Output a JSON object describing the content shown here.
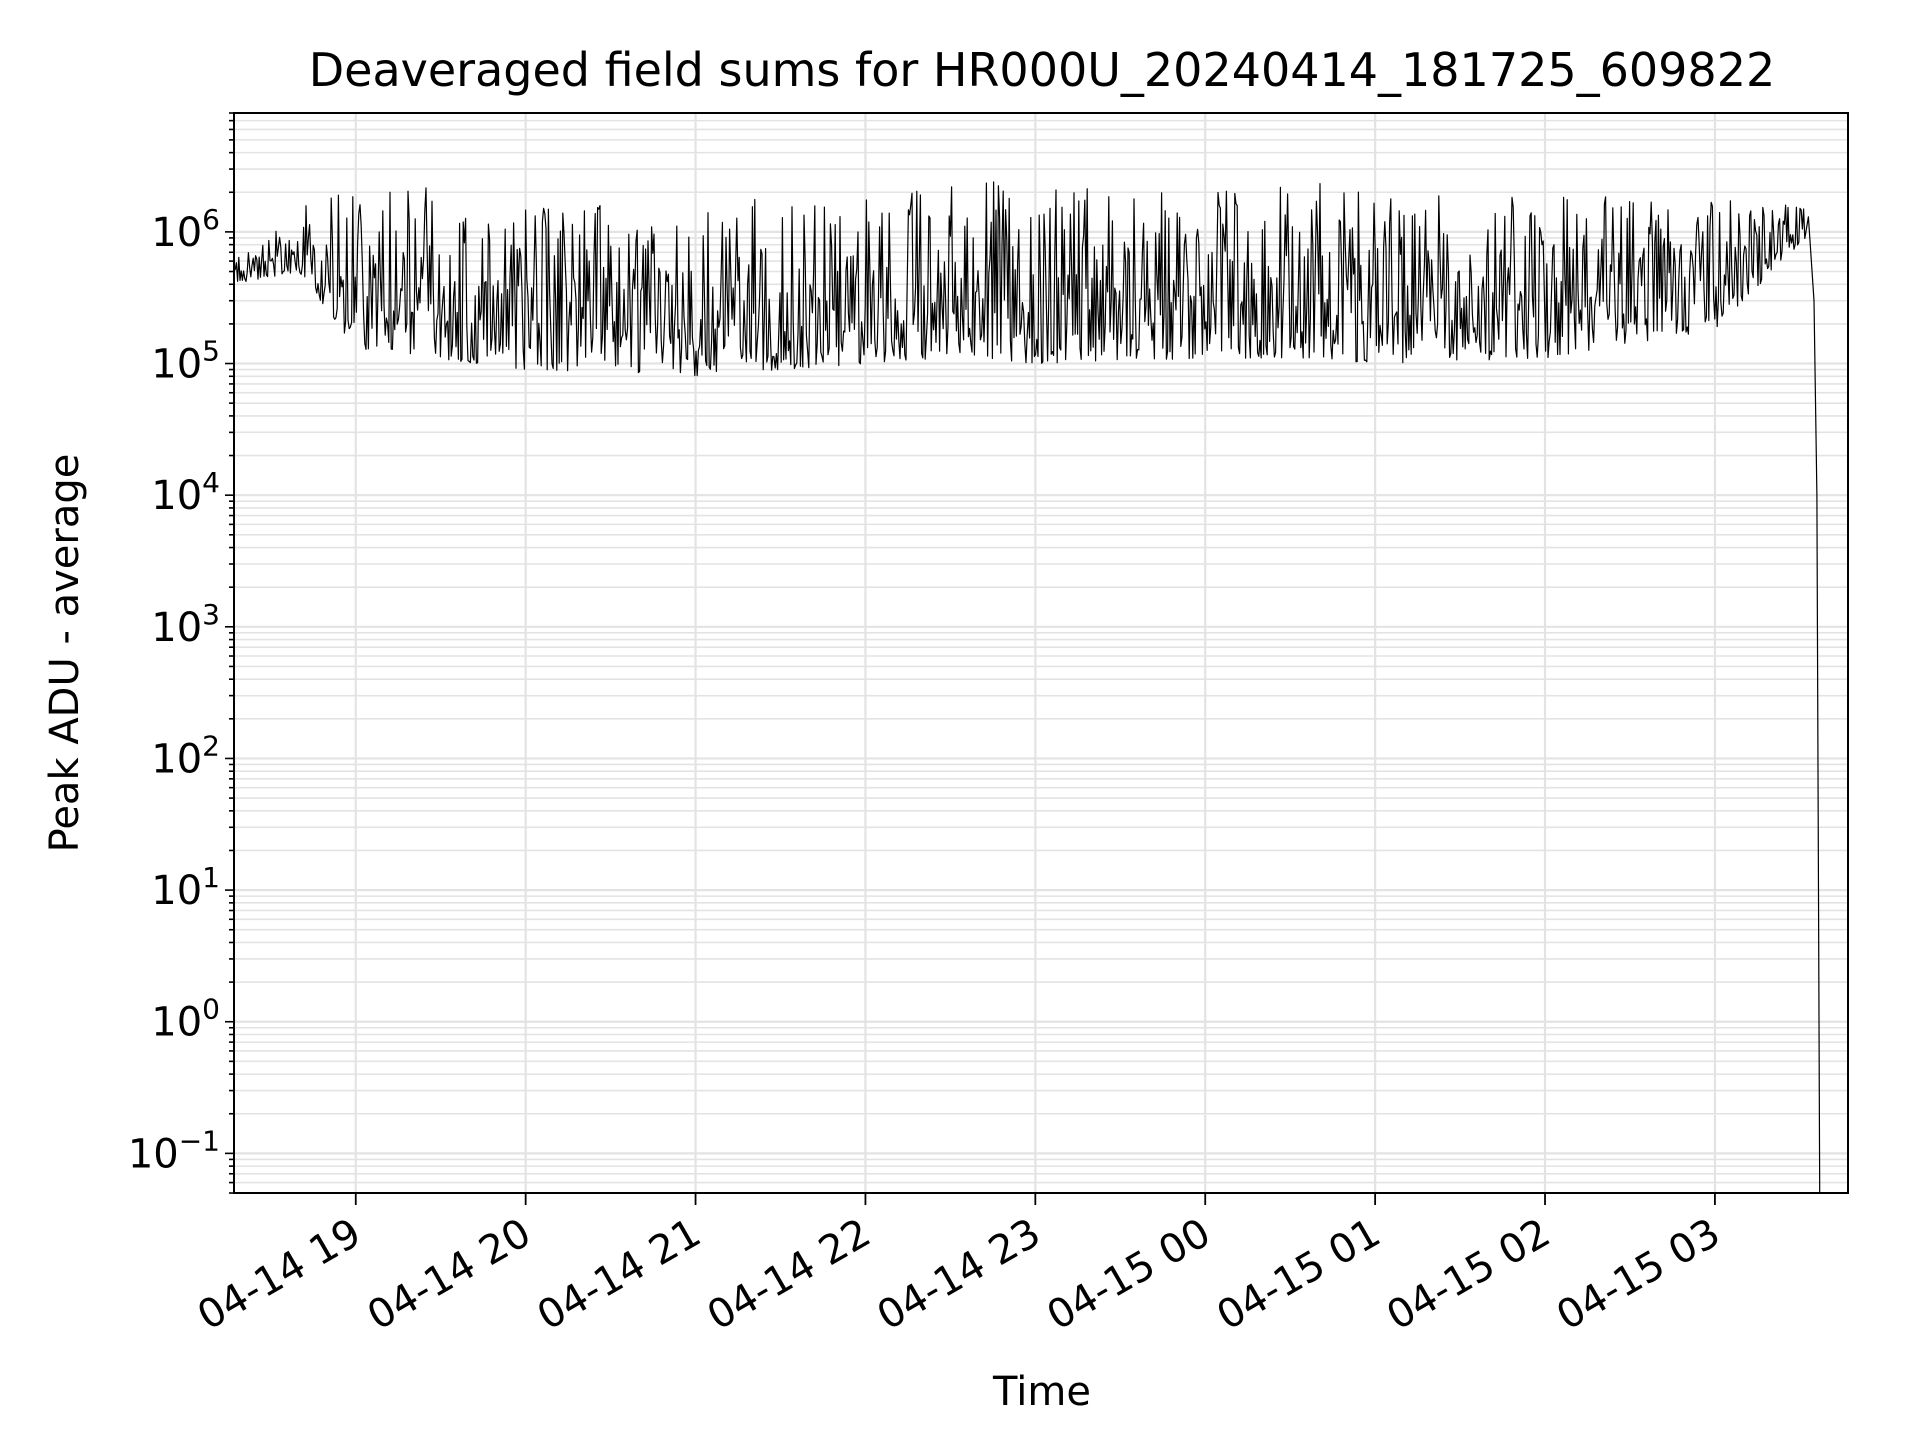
{
  "chart_data": {
    "type": "line",
    "title": "Deaveraged field sums for HR000U_20240414_181725_609822",
    "xlabel": "Time",
    "ylabel": "Peak ADU - average",
    "yscale": "log",
    "ylim": [
      0.05,
      8000000
    ],
    "xlim": [
      "2024-04-14 18:17",
      "2024-04-15 03:47"
    ],
    "grid": true,
    "legend": "none",
    "line_color": "#000000",
    "x_ticks": [
      {
        "time": "2024-04-14 19:00",
        "label": "04-14 19"
      },
      {
        "time": "2024-04-14 20:00",
        "label": "04-14 20"
      },
      {
        "time": "2024-04-14 21:00",
        "label": "04-14 21"
      },
      {
        "time": "2024-04-14 22:00",
        "label": "04-14 22"
      },
      {
        "time": "2024-04-14 23:00",
        "label": "04-14 23"
      },
      {
        "time": "2024-04-15 00:00",
        "label": "04-15 00"
      },
      {
        "time": "2024-04-15 01:00",
        "label": "04-15 01"
      },
      {
        "time": "2024-04-15 02:00",
        "label": "04-15 02"
      },
      {
        "time": "2024-04-15 03:00",
        "label": "04-15 03"
      }
    ],
    "y_ticks": [
      {
        "value": 0.1,
        "base": "10",
        "exp": "−1"
      },
      {
        "value": 1,
        "base": "10",
        "exp": "0"
      },
      {
        "value": 10,
        "base": "10",
        "exp": "1"
      },
      {
        "value": 100,
        "base": "10",
        "exp": "2"
      },
      {
        "value": 1000,
        "base": "10",
        "exp": "3"
      },
      {
        "value": 10000,
        "base": "10",
        "exp": "4"
      },
      {
        "value": 100000,
        "base": "10",
        "exp": "5"
      },
      {
        "value": 1000000,
        "base": "10",
        "exp": "6"
      }
    ],
    "series": [
      {
        "envelope": [
          {
            "time": "2024-04-14 18:17",
            "low": 400000,
            "high": 600000
          },
          {
            "time": "2024-04-14 18:40",
            "low": 500000,
            "high": 1500000
          },
          {
            "time": "2024-04-14 19:00",
            "low": 130000,
            "high": 2800000
          },
          {
            "time": "2024-04-14 20:00",
            "low": 90000,
            "high": 1500000
          },
          {
            "time": "2024-04-14 21:00",
            "low": 80000,
            "high": 1700000
          },
          {
            "time": "2024-04-14 22:00",
            "low": 100000,
            "high": 2000000
          },
          {
            "time": "2024-04-14 22:30",
            "low": 110000,
            "high": 3300000
          },
          {
            "time": "2024-04-14 23:00",
            "low": 100000,
            "high": 2200000
          },
          {
            "time": "2024-04-15 00:00",
            "low": 110000,
            "high": 2000000
          },
          {
            "time": "2024-04-15 00:40",
            "low": 110000,
            "high": 2500000
          },
          {
            "time": "2024-04-15 01:00",
            "low": 100000,
            "high": 2000000
          },
          {
            "time": "2024-04-15 02:00",
            "low": 110000,
            "high": 1900000
          },
          {
            "time": "2024-04-15 03:00",
            "low": 180000,
            "high": 1800000
          },
          {
            "time": "2024-04-15 03:32",
            "low": 900000,
            "high": 1600000
          }
        ],
        "final_drop": [
          {
            "time": "2024-04-15 03:33",
            "value": 1300000
          },
          {
            "time": "2024-04-15 03:35",
            "value": 300000
          },
          {
            "time": "2024-04-15 03:36",
            "value": 10000
          },
          {
            "time": "2024-04-15 03:37",
            "value": 0.05
          }
        ]
      }
    ]
  }
}
